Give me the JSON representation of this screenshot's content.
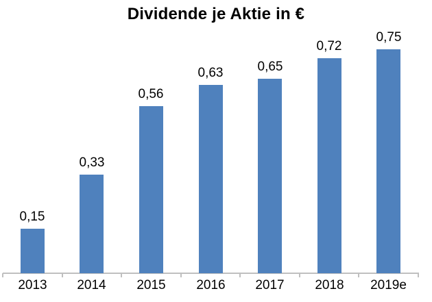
{
  "title": "Dividende je Aktie in €",
  "colors": {
    "bar": "#4f81bd",
    "axis": "#bfbfbf",
    "text": "#000000",
    "background": "#ffffff"
  },
  "chart_data": {
    "type": "bar",
    "title": "Dividende je Aktie in €",
    "categories": [
      "2013",
      "2014",
      "2015",
      "2016",
      "2017",
      "2018",
      "2019e"
    ],
    "values": [
      0.15,
      0.33,
      0.56,
      0.63,
      0.65,
      0.72,
      0.75
    ],
    "value_labels": [
      "0,15",
      "0,33",
      "0,56",
      "0,63",
      "0,65",
      "0,72",
      "0,75"
    ],
    "xlabel": "",
    "ylabel": "",
    "ylim": [
      0,
      0.8
    ],
    "grid": false,
    "legend": false,
    "y_axis_visible": false,
    "decimal_separator": ","
  }
}
